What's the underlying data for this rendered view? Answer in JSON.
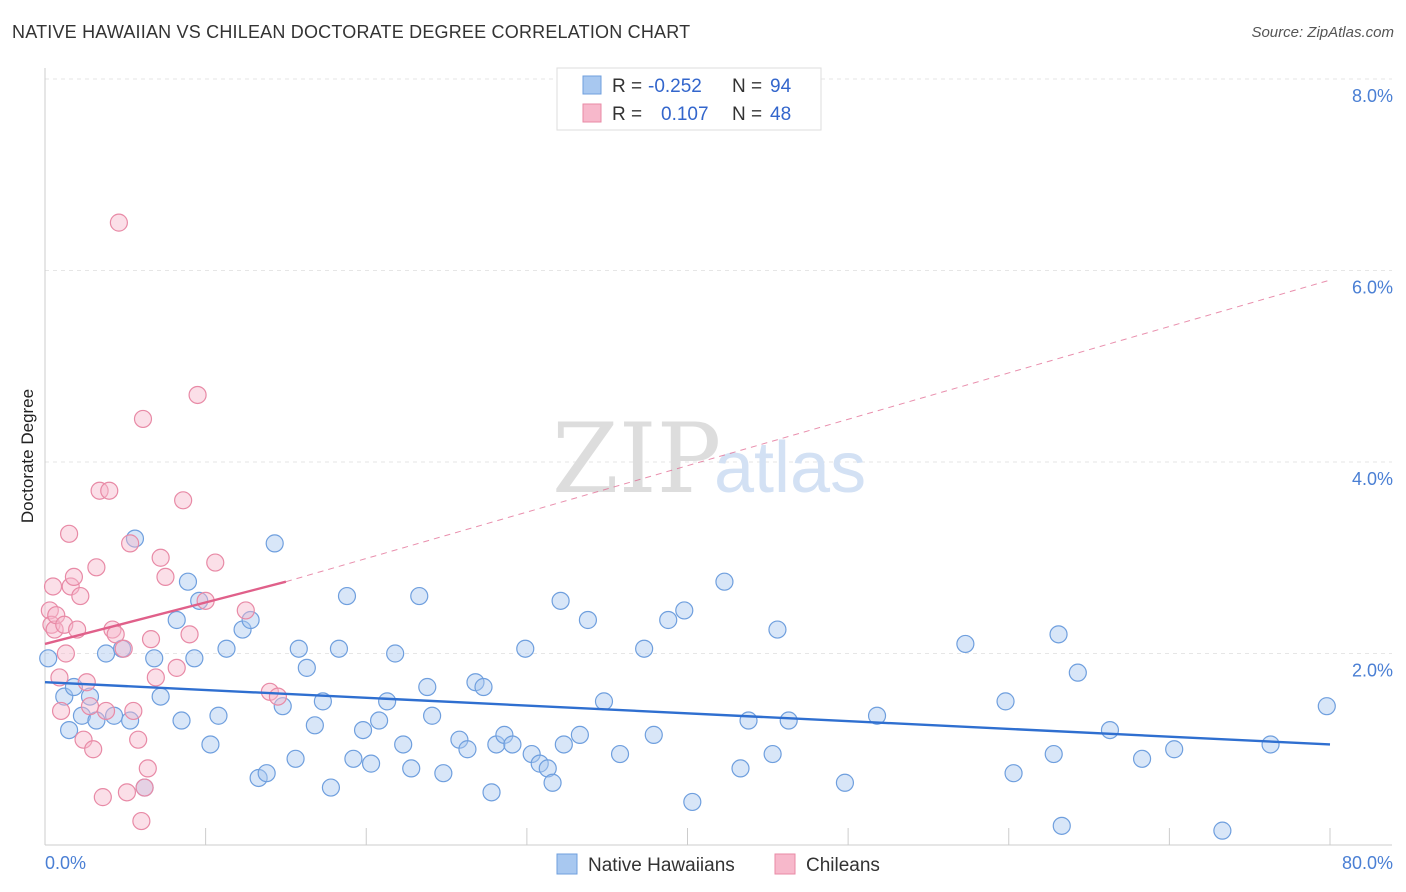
{
  "title": "NATIVE HAWAIIAN VS CHILEAN DOCTORATE DEGREE CORRELATION CHART",
  "source": "Source: ZipAtlas.com",
  "watermark": {
    "zip": "ZIP",
    "atlas": "atlas"
  },
  "legend": {
    "rows": [
      {
        "r_label": "R =",
        "r_value": "-0.252",
        "n_label": "N =",
        "n_value": "94",
        "color": "#a8c8f0",
        "stroke": "#6f9fde"
      },
      {
        "r_label": "R =",
        "r_value": "0.107",
        "n_label": "N =",
        "n_value": "48",
        "color": "#f7b8cb",
        "stroke": "#e88aa6"
      }
    ]
  },
  "bottom_legend": [
    {
      "label": "Native Hawaiians",
      "color": "#a8c8f0",
      "stroke": "#6f9fde"
    },
    {
      "label": "Chileans",
      "color": "#f7b8cb",
      "stroke": "#e88aa6"
    }
  ],
  "chart_data": {
    "type": "scatter",
    "xlabel": "",
    "ylabel": "Doctorate Degree",
    "xlim": [
      0,
      80
    ],
    "ylim": [
      0,
      8
    ],
    "x_tick_labels": [
      {
        "value": 0,
        "label": "0.0%"
      },
      {
        "value": 80,
        "label": "80.0%"
      }
    ],
    "y_tick_labels": [
      {
        "value": 2,
        "label": "2.0%"
      },
      {
        "value": 4,
        "label": "4.0%"
      },
      {
        "value": 6,
        "label": "6.0%"
      },
      {
        "value": 8,
        "label": "8.0%"
      }
    ],
    "grid": true,
    "series": [
      {
        "name": "Native Hawaiians",
        "color": "#a8c8f0",
        "stroke": "#6f9fde",
        "trend": {
          "x0": 0,
          "y0": 1.7,
          "x1": 80,
          "y1": 1.05,
          "color": "#2f6fd0"
        },
        "points": [
          [
            0.2,
            1.95
          ],
          [
            1.2,
            1.55
          ],
          [
            1.5,
            1.2
          ],
          [
            1.8,
            1.65
          ],
          [
            2.3,
            1.35
          ],
          [
            2.8,
            1.55
          ],
          [
            3.2,
            1.3
          ],
          [
            3.8,
            2.0
          ],
          [
            4.3,
            1.35
          ],
          [
            4.8,
            2.05
          ],
          [
            5.3,
            1.3
          ],
          [
            5.6,
            3.2
          ],
          [
            6.2,
            0.6
          ],
          [
            6.8,
            1.95
          ],
          [
            7.2,
            1.55
          ],
          [
            8.2,
            2.35
          ],
          [
            8.5,
            1.3
          ],
          [
            8.9,
            2.75
          ],
          [
            9.3,
            1.95
          ],
          [
            9.6,
            2.55
          ],
          [
            10.3,
            1.05
          ],
          [
            10.8,
            1.35
          ],
          [
            11.3,
            2.05
          ],
          [
            12.3,
            2.25
          ],
          [
            12.8,
            2.35
          ],
          [
            13.3,
            0.7
          ],
          [
            13.8,
            0.75
          ],
          [
            14.3,
            3.15
          ],
          [
            14.8,
            1.45
          ],
          [
            15.6,
            0.9
          ],
          [
            15.8,
            2.05
          ],
          [
            16.3,
            1.85
          ],
          [
            16.8,
            1.25
          ],
          [
            17.3,
            1.5
          ],
          [
            17.8,
            0.6
          ],
          [
            18.3,
            2.05
          ],
          [
            18.8,
            2.6
          ],
          [
            19.2,
            0.9
          ],
          [
            19.8,
            1.2
          ],
          [
            20.3,
            0.85
          ],
          [
            20.8,
            1.3
          ],
          [
            21.3,
            1.5
          ],
          [
            21.8,
            2.0
          ],
          [
            22.3,
            1.05
          ],
          [
            22.8,
            0.8
          ],
          [
            23.3,
            2.6
          ],
          [
            23.8,
            1.65
          ],
          [
            24.1,
            1.35
          ],
          [
            24.8,
            0.75
          ],
          [
            25.8,
            1.1
          ],
          [
            26.3,
            1.0
          ],
          [
            26.8,
            1.7
          ],
          [
            27.3,
            1.65
          ],
          [
            27.8,
            0.55
          ],
          [
            28.1,
            1.05
          ],
          [
            28.6,
            1.15
          ],
          [
            29.1,
            1.05
          ],
          [
            29.9,
            2.05
          ],
          [
            30.3,
            0.95
          ],
          [
            30.8,
            0.85
          ],
          [
            31.3,
            0.8
          ],
          [
            31.6,
            0.65
          ],
          [
            32.1,
            2.55
          ],
          [
            32.3,
            1.05
          ],
          [
            33.3,
            1.15
          ],
          [
            33.8,
            2.35
          ],
          [
            34.8,
            1.5
          ],
          [
            35.8,
            0.95
          ],
          [
            37.3,
            2.05
          ],
          [
            37.9,
            1.15
          ],
          [
            38.8,
            2.35
          ],
          [
            39.8,
            2.45
          ],
          [
            40.3,
            0.45
          ],
          [
            42.3,
            2.75
          ],
          [
            43.3,
            0.8
          ],
          [
            43.8,
            1.3
          ],
          [
            45.3,
            0.95
          ],
          [
            45.6,
            2.25
          ],
          [
            46.3,
            1.3
          ],
          [
            49.8,
            0.65
          ],
          [
            51.8,
            1.35
          ],
          [
            57.3,
            2.1
          ],
          [
            59.8,
            1.5
          ],
          [
            60.3,
            0.75
          ],
          [
            62.8,
            0.95
          ],
          [
            63.3,
            0.2
          ],
          [
            63.1,
            2.2
          ],
          [
            64.3,
            1.8
          ],
          [
            66.3,
            1.2
          ],
          [
            68.3,
            0.9
          ],
          [
            70.3,
            1.0
          ],
          [
            73.3,
            0.15
          ],
          [
            76.3,
            1.05
          ],
          [
            79.8,
            1.45
          ]
        ]
      },
      {
        "name": "Chileans",
        "color": "#f7b8cb",
        "stroke": "#e88aa6",
        "trend": {
          "x0": 0,
          "y0": 2.1,
          "x1": 15,
          "y1": 2.75,
          "color": "#e0608a",
          "dash_to_x": 80,
          "dash_to_y": 5.9
        },
        "points": [
          [
            0.3,
            2.45
          ],
          [
            0.4,
            2.3
          ],
          [
            0.5,
            2.7
          ],
          [
            0.6,
            2.25
          ],
          [
            0.7,
            2.4
          ],
          [
            0.9,
            1.75
          ],
          [
            1.0,
            1.4
          ],
          [
            1.2,
            2.3
          ],
          [
            1.3,
            2.0
          ],
          [
            1.5,
            3.25
          ],
          [
            1.6,
            2.7
          ],
          [
            1.8,
            2.8
          ],
          [
            2.0,
            2.25
          ],
          [
            2.2,
            2.6
          ],
          [
            2.4,
            1.1
          ],
          [
            2.6,
            1.7
          ],
          [
            2.8,
            1.45
          ],
          [
            3.0,
            1.0
          ],
          [
            3.2,
            2.9
          ],
          [
            3.4,
            3.7
          ],
          [
            3.6,
            0.5
          ],
          [
            3.8,
            1.4
          ],
          [
            4.0,
            3.7
          ],
          [
            4.2,
            2.25
          ],
          [
            4.4,
            2.2
          ],
          [
            4.6,
            6.5
          ],
          [
            4.9,
            2.05
          ],
          [
            5.1,
            0.55
          ],
          [
            5.3,
            3.15
          ],
          [
            5.5,
            1.4
          ],
          [
            5.8,
            1.1
          ],
          [
            6.0,
            0.25
          ],
          [
            6.1,
            4.45
          ],
          [
            6.2,
            0.6
          ],
          [
            6.4,
            0.8
          ],
          [
            6.6,
            2.15
          ],
          [
            6.9,
            1.75
          ],
          [
            7.2,
            3.0
          ],
          [
            7.5,
            2.8
          ],
          [
            8.2,
            1.85
          ],
          [
            8.6,
            3.6
          ],
          [
            9.0,
            2.2
          ],
          [
            9.5,
            4.7
          ],
          [
            10.0,
            2.55
          ],
          [
            10.6,
            2.95
          ],
          [
            12.5,
            2.45
          ],
          [
            14.0,
            1.6
          ],
          [
            14.5,
            1.55
          ]
        ]
      }
    ]
  }
}
